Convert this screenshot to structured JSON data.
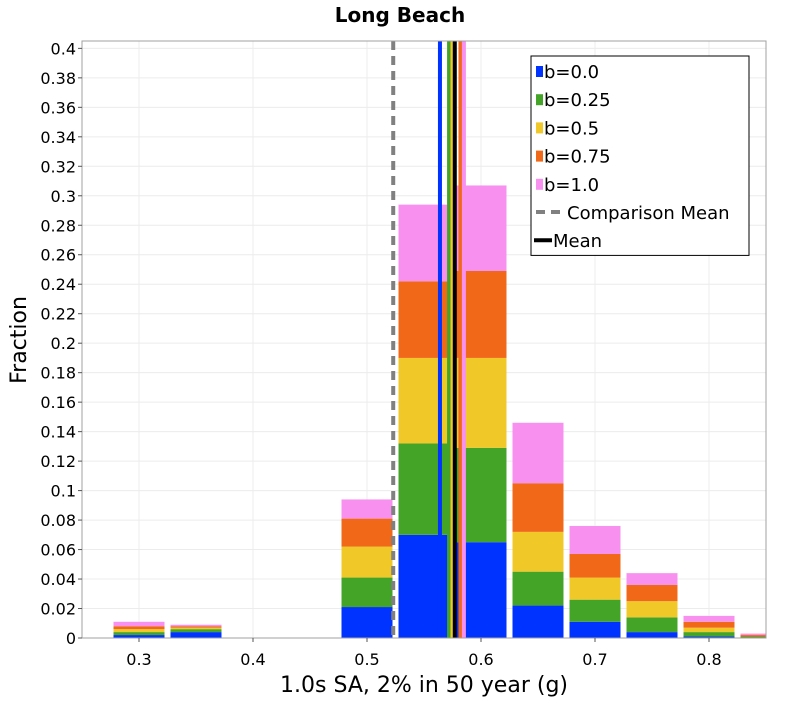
{
  "chart_data": {
    "type": "bar",
    "stacked": true,
    "title": "Long Beach",
    "xlabel": "1.0s SA, 2% in 50 year (g)",
    "ylabel": "Fraction",
    "xlim": [
      0.25,
      0.85
    ],
    "ylim": [
      0,
      0.405
    ],
    "x_ticks": [
      0.3,
      0.4,
      0.5,
      0.6,
      0.7,
      0.8
    ],
    "x_tick_labels": [
      "0.3",
      "0.4",
      "0.5",
      "0.6",
      "0.7",
      "0.8"
    ],
    "y_ticks": [
      0,
      0.02,
      0.04,
      0.06,
      0.08,
      0.1,
      0.12,
      0.14,
      0.16,
      0.18,
      0.2,
      0.22,
      0.24,
      0.26,
      0.28,
      0.3,
      0.32,
      0.34,
      0.36,
      0.38,
      0.4
    ],
    "y_tick_labels": [
      "0",
      "0.02",
      "0.04",
      "0.06",
      "0.08",
      "0.1",
      "0.12",
      "0.14",
      "0.16",
      "0.18",
      "0.2",
      "0.22",
      "0.24",
      "0.26",
      "0.28",
      "0.3",
      "0.32",
      "0.34",
      "0.36",
      "0.38",
      "0.4"
    ],
    "bin_width": 0.05,
    "bin_centers": [
      0.3,
      0.35,
      0.4,
      0.45,
      0.5,
      0.55,
      0.6,
      0.65,
      0.7,
      0.75,
      0.8,
      0.85
    ],
    "grid": true,
    "legend_position": "top-right",
    "series": [
      {
        "name": "b=0.0",
        "color": "#0033ff",
        "values": [
          0.002,
          0.004,
          0.0,
          0.0,
          0.021,
          0.07,
          0.065,
          0.022,
          0.011,
          0.004,
          0.001,
          0.0
        ]
      },
      {
        "name": "b=0.25",
        "color": "#44a428",
        "values": [
          0.002,
          0.002,
          0.0,
          0.0,
          0.02,
          0.062,
          0.064,
          0.023,
          0.015,
          0.01,
          0.003,
          0.001
        ]
      },
      {
        "name": "b=0.5",
        "color": "#f0c828",
        "values": [
          0.002,
          0.001,
          0.0,
          0.0,
          0.021,
          0.058,
          0.061,
          0.027,
          0.015,
          0.011,
          0.003,
          0.0
        ]
      },
      {
        "name": "b=0.75",
        "color": "#f06818",
        "values": [
          0.002,
          0.001,
          0.0,
          0.0,
          0.019,
          0.052,
          0.059,
          0.033,
          0.016,
          0.011,
          0.004,
          0.001
        ]
      },
      {
        "name": "b=1.0",
        "color": "#f890f0",
        "values": [
          0.003,
          0.001,
          0.0,
          0.0,
          0.013,
          0.052,
          0.058,
          0.041,
          0.019,
          0.008,
          0.004,
          0.001
        ]
      }
    ],
    "mean_lines": [
      {
        "series": "b=0.0",
        "x": 0.564,
        "color": "#0033ff"
      },
      {
        "series": "b=0.25",
        "x": 0.572,
        "color": "#44a428"
      },
      {
        "series": "b=0.5",
        "x": 0.575,
        "color": "#f0c828"
      },
      {
        "series": "b=0.75",
        "x": 0.582,
        "color": "#f06818"
      },
      {
        "series": "b=1.0",
        "x": 0.585,
        "color": "#f890f0"
      }
    ],
    "overall_mean": {
      "name": "Mean",
      "x": 0.577,
      "color": "#000000"
    },
    "comparison_mean": {
      "name": "Comparison Mean",
      "x": 0.523,
      "color": "#808080"
    }
  }
}
